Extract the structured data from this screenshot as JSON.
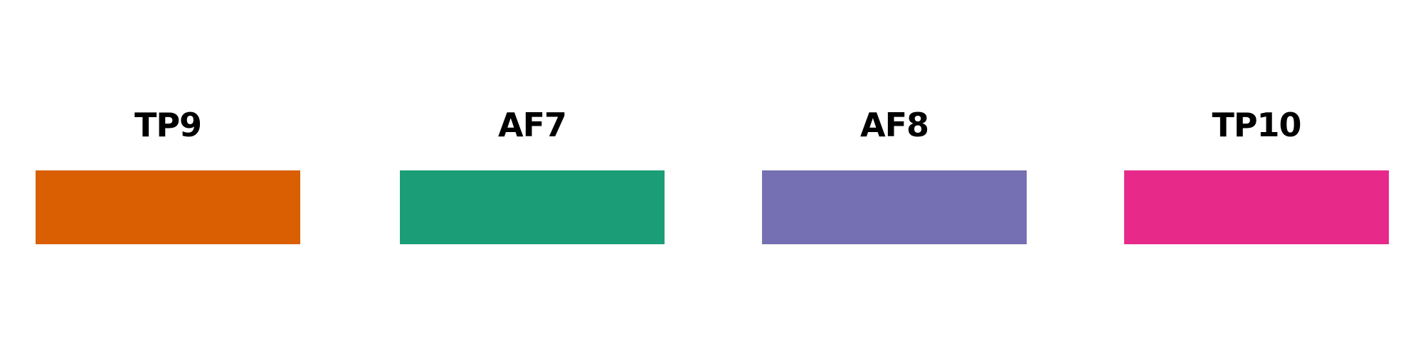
{
  "legend": {
    "items": [
      {
        "label": "TP9",
        "color": "#D95F02"
      },
      {
        "label": "AF7",
        "color": "#1B9E77"
      },
      {
        "label": "AF8",
        "color": "#7570B3"
      },
      {
        "label": "TP10",
        "color": "#E7298A"
      }
    ]
  }
}
